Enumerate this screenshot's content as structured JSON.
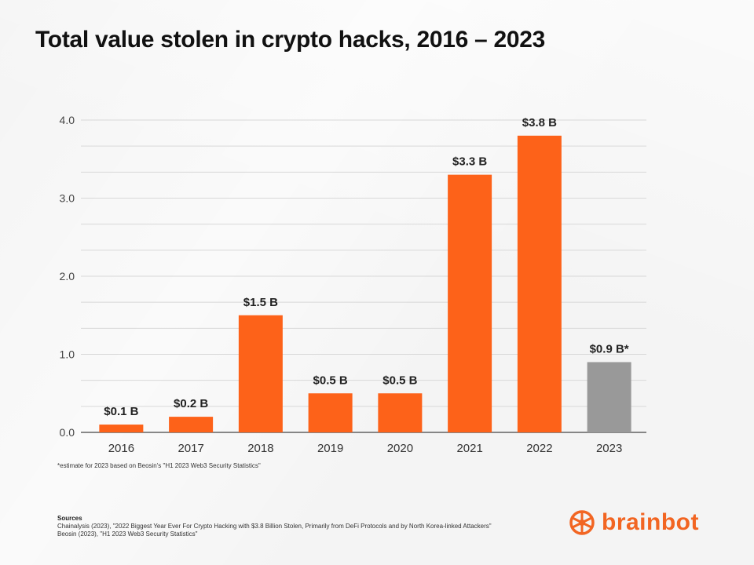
{
  "chart_data": {
    "type": "bar",
    "title": "Total value stolen in crypto hacks, 2016 – 2023",
    "categories": [
      "2016",
      "2017",
      "2018",
      "2019",
      "2020",
      "2021",
      "2022",
      "2023"
    ],
    "values": [
      0.1,
      0.2,
      1.5,
      0.5,
      0.5,
      3.3,
      3.8,
      0.9
    ],
    "data_labels": [
      "$0.1 B",
      "$0.2 B",
      "$1.5 B",
      "$0.5 B",
      "$0.5 B",
      "$3.3 B",
      "$3.8 B",
      "$0.9 B*"
    ],
    "bar_colors": [
      "#fd6219",
      "#fd6219",
      "#fd6219",
      "#fd6219",
      "#fd6219",
      "#fd6219",
      "#fd6219",
      "#999999"
    ],
    "y_ticks": [
      "0.0",
      "1.0",
      "2.0",
      "3.0",
      "4.0"
    ],
    "ylim": [
      0,
      4.0
    ],
    "xlabel": "",
    "ylabel": "",
    "grid": true,
    "gridline_color": "#d8d8d8"
  },
  "footnote": "*estimate for 2023 based on Beosin's \"H1 2023 Web3 Security Statistics\"",
  "sources": {
    "heading": "Sources",
    "lines": [
      "Chainalysis (2023), \"2022 Biggest Year Ever For Crypto Hacking with $3.8 Billion Stolen, Primarily from DeFi Protocols and by North Korea-linked Attackers\"",
      "Beosin (2023), \"H1 2023 Web3 Security Statistics\""
    ]
  },
  "brand": {
    "name": "brainbot",
    "icon": "brainbot-logo-icon",
    "color": "#f26522"
  }
}
